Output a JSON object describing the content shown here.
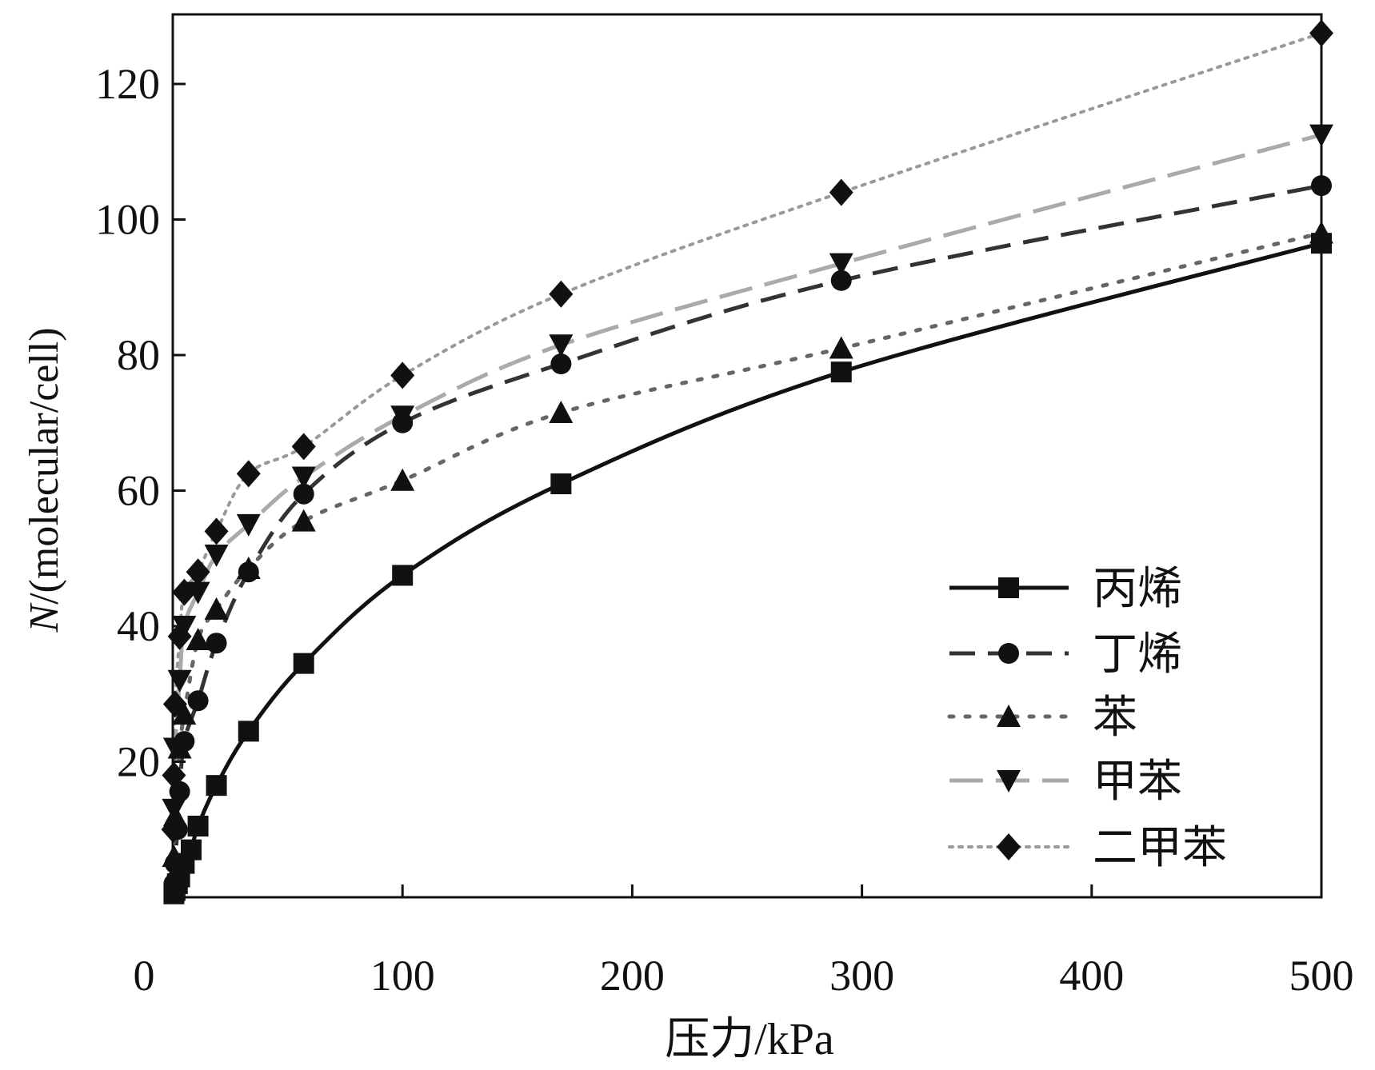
{
  "chart_data": {
    "type": "line",
    "title": "",
    "xlabel": "压力/kPa",
    "ylabel_italic": "N",
    "ylabel_rest": "/(molecular/cell)",
    "xlim": [
      0,
      500
    ],
    "ylim": [
      0,
      130
    ],
    "x_ticks": [
      0,
      100,
      200,
      300,
      400,
      500
    ],
    "y_ticks": [
      20,
      40,
      60,
      80,
      100,
      120
    ],
    "x_tick_labels": [
      "0",
      "100",
      "200",
      "300",
      "400",
      "500"
    ],
    "y_tick_labels": [
      "20",
      "40",
      "60",
      "80",
      "100",
      "120"
    ],
    "grid": false,
    "legend_position": "bottom-right",
    "series": [
      {
        "name": "丙烯",
        "marker": "square",
        "line": "solid",
        "color": "#111111",
        "x": [
          0.5,
          1,
          2,
          3,
          5,
          8,
          11,
          19,
          33,
          57,
          100,
          169,
          291,
          500
        ],
        "y": [
          0.5,
          1,
          2,
          3,
          5,
          7,
          10.5,
          16.5,
          24.5,
          34.5,
          47.5,
          61,
          77.5,
          96.5
        ]
      },
      {
        "name": "丁烯",
        "marker": "circle",
        "line": "dashed",
        "color": "#333333",
        "x": [
          0.5,
          1,
          2,
          3,
          5,
          11,
          19,
          33,
          57,
          100,
          169,
          291,
          500
        ],
        "y": [
          2,
          5,
          10,
          15.6,
          23,
          29,
          37.5,
          48,
          59.5,
          70,
          78.7,
          91,
          105
        ]
      },
      {
        "name": "苯",
        "marker": "triangle-up",
        "line": "dotted",
        "color": "#666666",
        "x": [
          0.5,
          1,
          3,
          5,
          11,
          19,
          33,
          57,
          100,
          169,
          291,
          500
        ],
        "y": [
          6,
          12,
          22,
          27,
          38,
          42.5,
          48.5,
          55.5,
          61.5,
          71.5,
          81,
          98
        ]
      },
      {
        "name": "甲苯",
        "marker": "triangle-down",
        "line": "long-dash",
        "color": "#aaaaaa",
        "x": [
          0.5,
          1,
          3,
          5,
          11,
          19,
          33,
          57,
          100,
          169,
          291,
          500
        ],
        "y": [
          13,
          22,
          32,
          40,
          45,
          50.5,
          55,
          62,
          71,
          81.5,
          93.5,
          112.5
        ]
      },
      {
        "name": "二甲苯",
        "marker": "diamond",
        "line": "fine-dotted",
        "color": "#999999",
        "x": [
          0.2,
          0.5,
          1,
          3,
          5,
          11,
          19,
          33,
          57,
          100,
          169,
          291,
          500
        ],
        "y": [
          10,
          18,
          28.5,
          38.5,
          45,
          48,
          54,
          62.5,
          66.5,
          77,
          89,
          104,
          127.5
        ]
      }
    ]
  }
}
